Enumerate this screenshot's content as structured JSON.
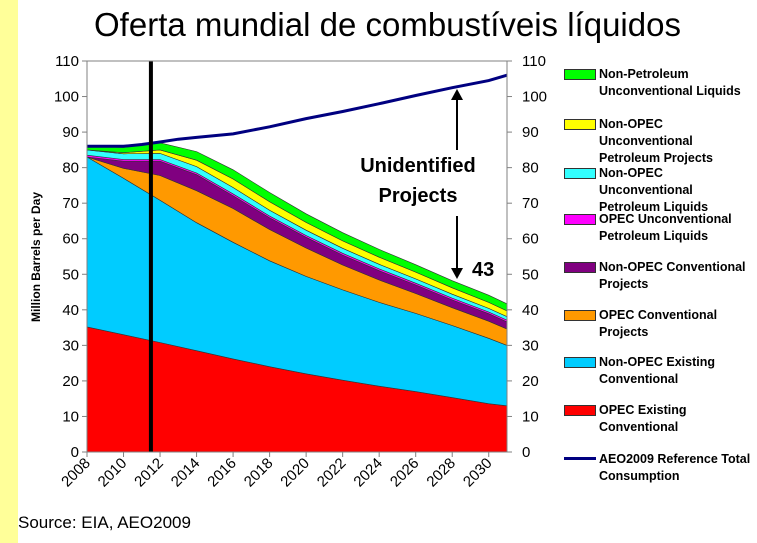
{
  "page": {
    "title": "Oferta mundial de combustíveis líquidos",
    "source": "Source: EIA, AEO2009"
  },
  "colors": {
    "plot_background": "#ffffff",
    "left_stripe": "#ffff99",
    "divider_line": "#000000"
  },
  "annotations": {
    "unidentified_line1": "Unidentified",
    "unidentified_line2": "Projects",
    "gap_value": "43"
  },
  "chart_data": {
    "type": "area",
    "stacked": true,
    "title": "Oferta mundial de combustíveis líquidos",
    "ylabel": "Million Barrels per Day",
    "xlabel": "",
    "ylim": [
      0,
      110
    ],
    "xlim": [
      2008,
      2031
    ],
    "y_ticks": [
      0,
      10,
      20,
      30,
      40,
      50,
      60,
      70,
      80,
      90,
      100,
      110
    ],
    "x_ticks": [
      "2008",
      "2010",
      "2012",
      "2014",
      "2016",
      "2018",
      "2020",
      "2022",
      "2024",
      "2026",
      "2028",
      "2030"
    ],
    "right_axis_ticks": [
      0,
      10,
      20,
      30,
      40,
      50,
      60,
      70,
      80,
      90,
      100,
      110
    ],
    "vertical_marker_year": 2011.5,
    "x": [
      2008,
      2010,
      2012,
      2014,
      2016,
      2018,
      2020,
      2022,
      2024,
      2026,
      2028,
      2030,
      2031
    ],
    "series": [
      {
        "name": "OPEC Existing Conventional",
        "color": "#ff0000",
        "values": [
          35.2,
          33,
          30.8,
          28.5,
          26.2,
          24,
          22,
          20.2,
          18.5,
          17,
          15.3,
          13.6,
          13
        ]
      },
      {
        "name": "Non-OPEC Existing Conventional",
        "color": "#00ccff",
        "values": [
          47.8,
          44,
          40,
          36,
          32.8,
          29.8,
          27.4,
          25.4,
          23.6,
          22,
          20.3,
          18.4,
          17
        ]
      },
      {
        "name": "OPEC Conventional Projects",
        "color": "#ff9900",
        "values": [
          0,
          2.8,
          7,
          9,
          9.5,
          8.8,
          8,
          7,
          6.3,
          5.6,
          5,
          4.8,
          4.6
        ]
      },
      {
        "name": "Non-OPEC Conventional Projects",
        "color": "#800080",
        "values": [
          0,
          2,
          4,
          4.5,
          3.6,
          3.3,
          3,
          2.8,
          2.6,
          2.4,
          2.2,
          2.1,
          2
        ]
      },
      {
        "name": "OPEC Unconventional Petroleum Liquids",
        "color": "#ff00ff",
        "values": [
          0.5,
          0.5,
          0.5,
          0.5,
          0.5,
          0.5,
          0.5,
          0.5,
          0.5,
          0.5,
          0.5,
          0.5,
          0.5
        ]
      },
      {
        "name": "Non-OPEC Unconventional Petroleum Liquids",
        "color": "#33ffff",
        "values": [
          1.5,
          1.6,
          1.7,
          1.8,
          1.8,
          1.6,
          1.5,
          1.4,
          1.3,
          1.2,
          1.1,
          1,
          1
        ]
      },
      {
        "name": "Non-OPEC Unconventional Petroleum Projects",
        "color": "#ffff00",
        "values": [
          0,
          0.3,
          1,
          1.8,
          2.4,
          2.4,
          2.2,
          2.1,
          2,
          1.9,
          1.8,
          1.7,
          1.6
        ]
      },
      {
        "name": "Non-Petroleum Unconventional Liquids",
        "color": "#00ff00",
        "values": [
          1,
          1.5,
          2,
          2.4,
          2.6,
          2.6,
          2.4,
          2.3,
          2.2,
          2.1,
          2,
          2,
          2
        ]
      }
    ],
    "line": {
      "name": "AEO2009 Reference Total Consumption",
      "color": "#000080",
      "x": [
        2008,
        2010,
        2011,
        2012,
        2013,
        2014,
        2016,
        2018,
        2020,
        2022,
        2024,
        2026,
        2028,
        2030,
        2031
      ],
      "values": [
        86,
        86,
        86.5,
        87.2,
        88,
        88.5,
        89.5,
        91.5,
        93.8,
        95.8,
        98,
        100.3,
        102.5,
        104.5,
        106
      ]
    },
    "legend": {
      "position": "right",
      "items": [
        {
          "label": "Non-Petroleum Unconventional Liquids",
          "color": "#00ff00",
          "kind": "box"
        },
        {
          "label": "Non-OPEC Unconventional Petroleum Projects",
          "color": "#ffff00",
          "kind": "box"
        },
        {
          "label": "Non-OPEC Unconventional Petroleum Liquids",
          "color": "#33ffff",
          "kind": "box"
        },
        {
          "label": "OPEC Unconventional Petroleum Liquids",
          "color": "#ff00ff",
          "kind": "box"
        },
        {
          "label": "Non-OPEC Conventional Projects",
          "color": "#800080",
          "kind": "box"
        },
        {
          "label": "OPEC Conventional Projects",
          "color": "#ff9900",
          "kind": "box"
        },
        {
          "label": "Non-OPEC Existing Conventional",
          "color": "#00ccff",
          "kind": "box"
        },
        {
          "label": "OPEC Existing Conventional",
          "color": "#ff0000",
          "kind": "box"
        },
        {
          "label": "AEO2009 Reference Total Consumption",
          "color": "#000080",
          "kind": "line"
        }
      ]
    },
    "grid": false
  }
}
